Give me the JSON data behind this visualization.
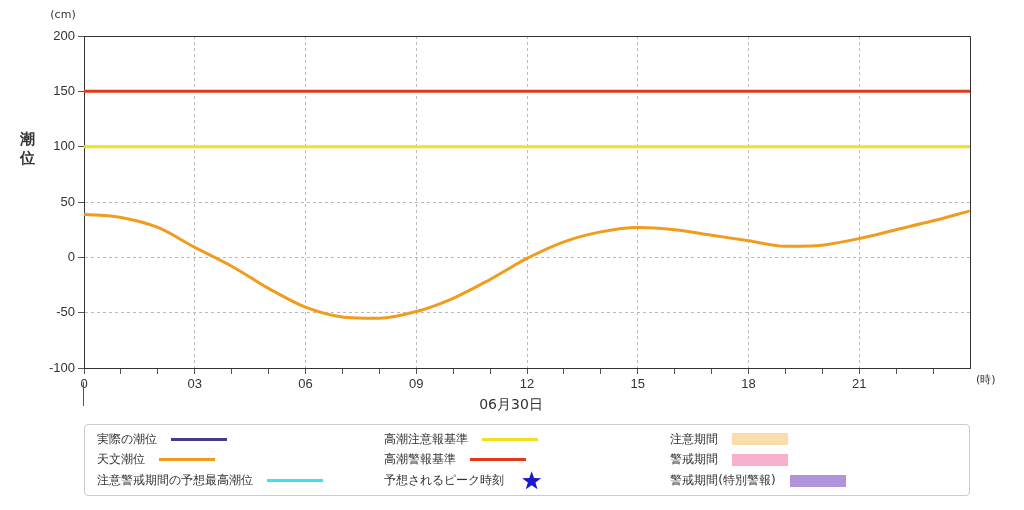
{
  "chart_data": {
    "type": "line",
    "xlabel": "06月30日",
    "ylabel": "潮位",
    "annotations": [
      "(cm)",
      "(時)"
    ],
    "xlim": [
      0,
      24
    ],
    "ylim": [
      -100,
      200
    ],
    "xticks": [
      {
        "value": 0,
        "label": "0"
      },
      {
        "value": 1,
        "label": null
      },
      {
        "value": 2,
        "label": null
      },
      {
        "value": 3,
        "label": "03"
      },
      {
        "value": 4,
        "label": null
      },
      {
        "value": 5,
        "label": null
      },
      {
        "value": 6,
        "label": "06"
      },
      {
        "value": 7,
        "label": null
      },
      {
        "value": 8,
        "label": null
      },
      {
        "value": 9,
        "label": "09"
      },
      {
        "value": 10,
        "label": null
      },
      {
        "value": 11,
        "label": null
      },
      {
        "value": 12,
        "label": "12"
      },
      {
        "value": 13,
        "label": null
      },
      {
        "value": 14,
        "label": null
      },
      {
        "value": 15,
        "label": "15"
      },
      {
        "value": 16,
        "label": null
      },
      {
        "value": 17,
        "label": null
      },
      {
        "value": 18,
        "label": "18"
      },
      {
        "value": 19,
        "label": null
      },
      {
        "value": 20,
        "label": null
      },
      {
        "value": 21,
        "label": "21"
      },
      {
        "value": 22,
        "label": null
      },
      {
        "value": 23,
        "label": null
      }
    ],
    "yticks": [
      -100,
      -50,
      0,
      50,
      100,
      150,
      200
    ],
    "grid": true,
    "legend": "bottom",
    "marker": "none",
    "line_style": "solid",
    "series": [
      {
        "name": "実際の潮位",
        "color": "#4b3a8c"
      },
      {
        "name": "天文潮位",
        "color": "#f09c1e",
        "x": [
          0,
          1,
          2,
          3,
          4,
          5,
          6,
          7,
          7.6,
          8,
          9,
          10,
          11,
          12,
          13,
          14,
          15,
          16,
          17,
          18,
          19,
          19.4,
          20,
          21,
          22,
          23,
          24
        ],
        "values": [
          39,
          36,
          27,
          9,
          -8,
          -28,
          -45,
          -54,
          -55,
          -55,
          -49,
          -37,
          -20,
          -1,
          14,
          23,
          27,
          25,
          20,
          15,
          10,
          10,
          11,
          17,
          25,
          33,
          42
        ]
      },
      {
        "name": "注意警戒期間の予想最高潮位",
        "color": "#33e6f0"
      },
      {
        "name": "高潮注意報基準",
        "color": "#f0e020",
        "x": [
          0,
          24
        ],
        "values": [
          100,
          100
        ]
      },
      {
        "name": "高潮警報基準",
        "color": "#e03a1a",
        "x": [
          0,
          24
        ],
        "values": [
          150,
          150
        ]
      },
      {
        "name": "予想されるピーク時刻",
        "type": "scatter",
        "marker": "star",
        "color": "#1a1acc"
      },
      {
        "name": "注意期間",
        "type": "area",
        "color": "#fbdcac"
      },
      {
        "name": "警戒期間",
        "type": "area",
        "color": "#f8b0cc"
      },
      {
        "name": "警戒期間(特別警報)",
        "type": "area",
        "color": "#b094dc"
      }
    ]
  }
}
